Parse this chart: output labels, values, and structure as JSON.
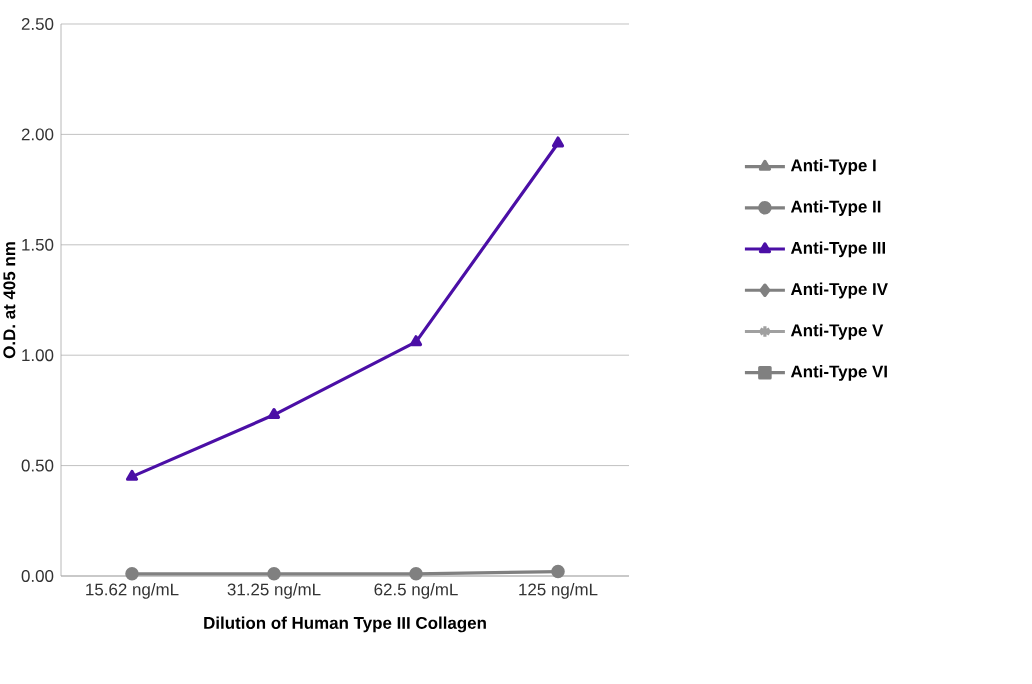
{
  "chart_data": {
    "type": "line",
    "xlabel": "Dilution of Human Type III Collagen",
    "ylabel": "O.D. at 405 nm",
    "categories": [
      "15.62 ng/mL",
      "31.25 ng/mL",
      "62.5 ng/mL",
      "125 ng/mL"
    ],
    "series": [
      {
        "name": "Anti-Type I",
        "color": "#808080",
        "marker": "triangle",
        "values": [
          null,
          null,
          null,
          null
        ]
      },
      {
        "name": "Anti-Type II",
        "color": "#808080",
        "marker": "circle",
        "values": [
          0.01,
          0.01,
          0.01,
          0.02
        ]
      },
      {
        "name": "Anti-Type III",
        "color": "#4b0fa6",
        "marker": "triangle",
        "values": [
          0.45,
          0.73,
          1.06,
          1.96
        ]
      },
      {
        "name": "Anti-Type IV",
        "color": "#808080",
        "marker": "diamond",
        "values": [
          null,
          null,
          null,
          null
        ]
      },
      {
        "name": "Anti-Type V",
        "color": "#a0a0a0",
        "marker": "star",
        "values": [
          null,
          null,
          null,
          null
        ]
      },
      {
        "name": "Anti-Type VI",
        "color": "#808080",
        "marker": "square",
        "values": [
          null,
          null,
          null,
          null
        ]
      }
    ],
    "ylim": [
      0,
      2.5
    ],
    "yticks": [
      {
        "value": 0,
        "label": "0.00"
      },
      {
        "value": 0.5,
        "label": "0.50"
      },
      {
        "value": 1,
        "label": "1.00"
      },
      {
        "value": 1.5,
        "label": "1.50"
      },
      {
        "value": 2,
        "label": "2.00"
      },
      {
        "value": 2.5,
        "label": "2.50"
      }
    ],
    "grid": "y",
    "legend": "right",
    "line_style": "solid"
  }
}
